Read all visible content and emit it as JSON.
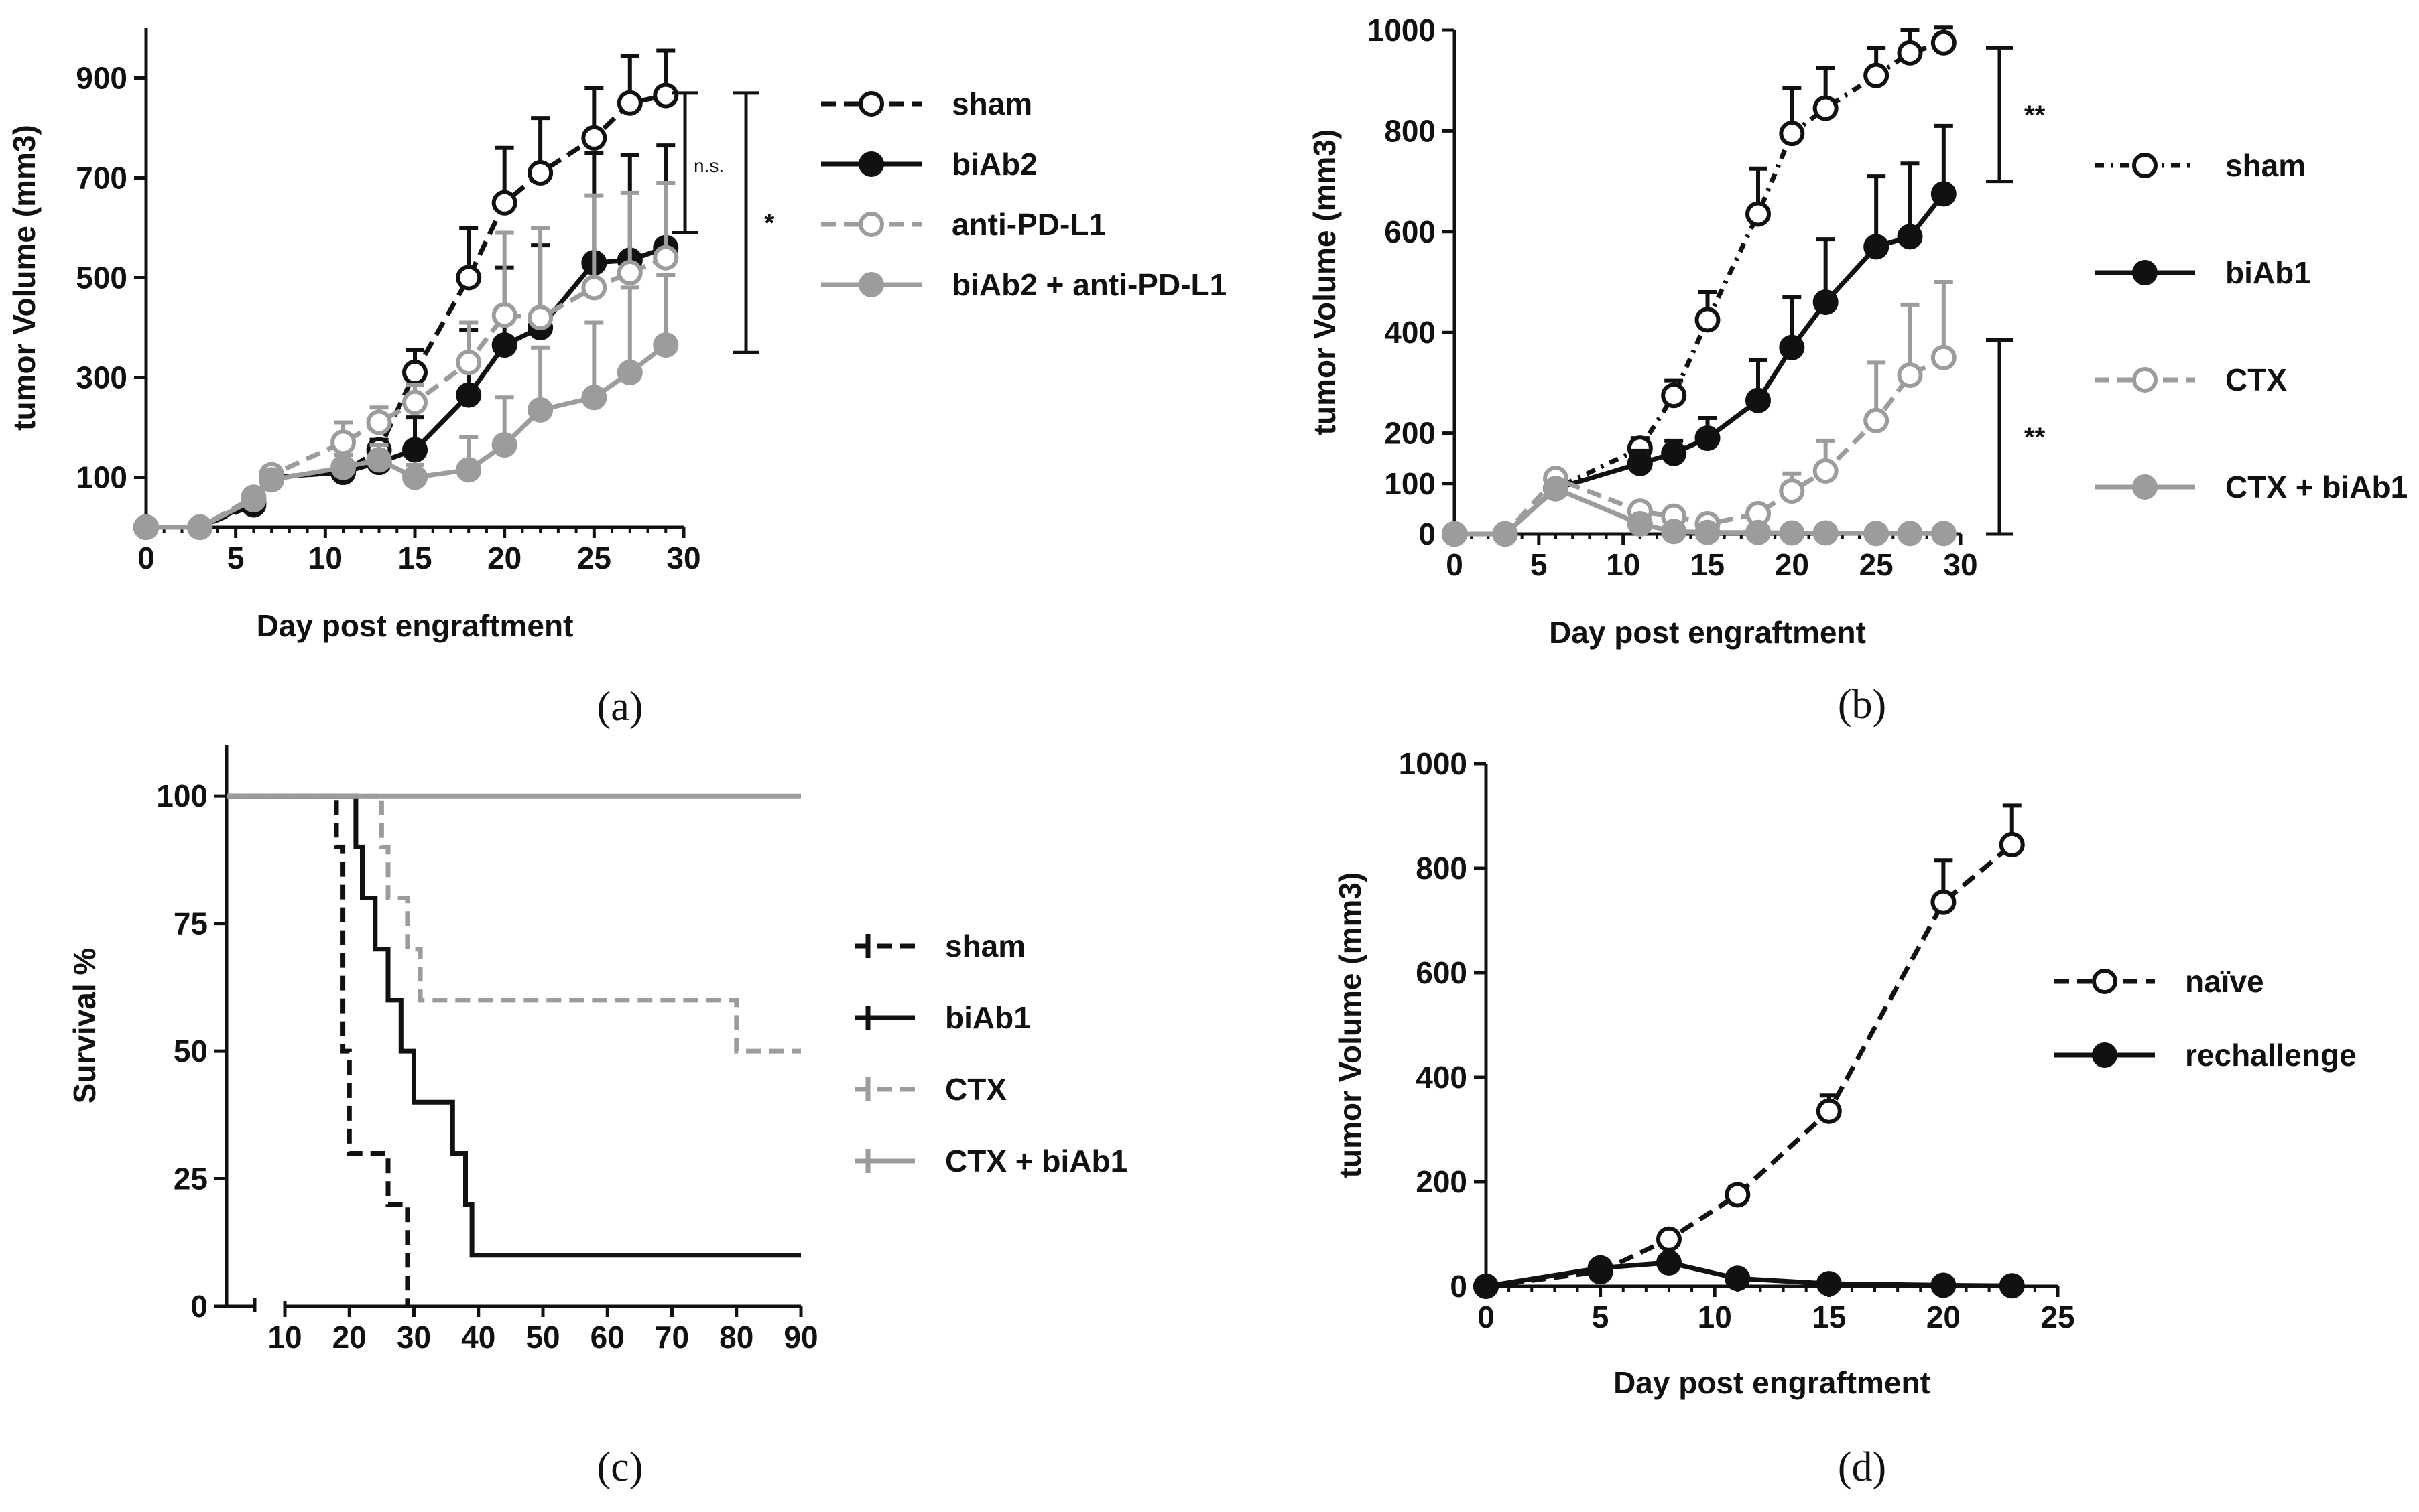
{
  "colors": {
    "black": "#111111",
    "gray": "#9c9c9c"
  },
  "chart_data": [
    {
      "type": "line",
      "panel_label": "(a)",
      "xlabel": "Day post engraftment",
      "ylabel": "tumor Volume (mm3)",
      "xlim": [
        0,
        30
      ],
      "ylim": [
        0,
        1000
      ],
      "x_ticks": [
        "0",
        "5",
        "10",
        "15",
        "20",
        "25",
        "30"
      ],
      "y_ticks": [
        "100",
        "300",
        "500",
        "700",
        "900"
      ],
      "series": [
        {
          "name": "sham",
          "style": "black-dashed-open",
          "x": [
            0,
            3,
            6,
            7,
            11,
            13,
            15,
            18,
            20,
            22,
            25,
            27,
            29
          ],
          "values": [
            0,
            0,
            45,
            100,
            110,
            155,
            310,
            500,
            650,
            710,
            780,
            850,
            865
          ],
          "errors": [
            0,
            0,
            10,
            15,
            15,
            20,
            45,
            100,
            110,
            110,
            100,
            95,
            90
          ]
        },
        {
          "name": "biAb2",
          "style": "black-solid-filled",
          "x": [
            0,
            3,
            6,
            7,
            11,
            13,
            15,
            18,
            20,
            22,
            25,
            27,
            29
          ],
          "values": [
            0,
            0,
            50,
            100,
            110,
            130,
            155,
            265,
            365,
            400,
            530,
            535,
            560
          ],
          "errors": [
            0,
            0,
            10,
            10,
            15,
            20,
            65,
            130,
            155,
            165,
            220,
            210,
            205
          ]
        },
        {
          "name": "anti-PD-L1",
          "style": "gray-dashed-open",
          "x": [
            0,
            3,
            6,
            7,
            11,
            13,
            15,
            18,
            20,
            22,
            25,
            27,
            29
          ],
          "values": [
            0,
            0,
            60,
            105,
            170,
            210,
            250,
            330,
            425,
            420,
            480,
            510,
            540
          ],
          "errors": [
            0,
            0,
            15,
            15,
            40,
            30,
            35,
            80,
            165,
            180,
            185,
            160,
            150
          ]
        },
        {
          "name": "biAb2 + anti-PD-L1",
          "style": "gray-solid-filled",
          "x": [
            0,
            3,
            6,
            7,
            11,
            13,
            15,
            18,
            20,
            22,
            25,
            27,
            29
          ],
          "values": [
            0,
            0,
            55,
            95,
            120,
            135,
            100,
            115,
            165,
            235,
            260,
            310,
            365
          ],
          "errors": [
            0,
            0,
            10,
            10,
            25,
            30,
            25,
            65,
            95,
            125,
            150,
            170,
            140
          ]
        }
      ],
      "annotations": [
        {
          "text": "n.s.",
          "y_top": 870,
          "y_bottom": 590
        },
        {
          "text": "*",
          "y_top": 870,
          "y_bottom": 350
        }
      ]
    },
    {
      "type": "line",
      "panel_label": "(b)",
      "xlabel": "Day post engraftment",
      "ylabel": "tumor Volume (mm3)",
      "xlim": [
        0,
        30
      ],
      "ylim": [
        0,
        1000
      ],
      "x_ticks": [
        "0",
        "5",
        "10",
        "15",
        "20",
        "25",
        "30"
      ],
      "y_ticks": [
        "0",
        "100",
        "200",
        "400",
        "600",
        "800",
        "1000"
      ],
      "series": [
        {
          "name": "sham",
          "style": "black-dashdot-open",
          "x": [
            0,
            3,
            6,
            11,
            13,
            15,
            18,
            20,
            22,
            25,
            27,
            29
          ],
          "values": [
            0,
            0,
            90,
            170,
            275,
            425,
            635,
            795,
            845,
            910,
            955,
            975
          ],
          "errors": [
            0,
            0,
            10,
            20,
            30,
            55,
            90,
            90,
            80,
            55,
            45,
            30
          ]
        },
        {
          "name": "biAb1",
          "style": "black-solid-filled",
          "x": [
            0,
            3,
            6,
            11,
            13,
            15,
            18,
            20,
            22,
            25,
            27,
            29
          ],
          "values": [
            0,
            0,
            90,
            140,
            160,
            190,
            265,
            370,
            460,
            570,
            590,
            675
          ],
          "errors": [
            0,
            0,
            10,
            25,
            25,
            40,
            80,
            100,
            125,
            140,
            145,
            135
          ]
        },
        {
          "name": "CTX",
          "style": "gray-dashed-open",
          "x": [
            0,
            3,
            6,
            11,
            13,
            15,
            18,
            20,
            22,
            25,
            27,
            29
          ],
          "values": [
            0,
            0,
            110,
            45,
            35,
            20,
            40,
            85,
            125,
            225,
            315,
            350
          ],
          "errors": [
            0,
            0,
            10,
            10,
            10,
            10,
            15,
            35,
            60,
            115,
            140,
            150
          ]
        },
        {
          "name": "CTX + biAb1",
          "style": "gray-solid-filled",
          "x": [
            0,
            3,
            6,
            11,
            13,
            15,
            18,
            20,
            22,
            25,
            27,
            29
          ],
          "values": [
            0,
            0,
            90,
            20,
            5,
            3,
            3,
            2,
            2,
            1,
            1,
            1
          ],
          "errors": [
            0,
            0,
            8,
            5,
            3,
            2,
            2,
            2,
            2,
            1,
            1,
            1
          ]
        }
      ],
      "annotations": [
        {
          "text": "**",
          "y_top": 965,
          "y_bottom": 700
        },
        {
          "text": "**",
          "y_top": 385,
          "y_bottom": 0
        }
      ]
    },
    {
      "type": "line",
      "panel_label": "(c)",
      "xlabel": "",
      "ylabel": "Survival %",
      "xlim": [
        0,
        90
      ],
      "ylim": [
        0,
        110
      ],
      "x_ticks": [
        "10",
        "20",
        "30",
        "40",
        "50",
        "60",
        "70",
        "80",
        "90"
      ],
      "y_ticks": [
        "0",
        "25",
        "50",
        "75",
        "100"
      ],
      "series": [
        {
          "name": "sham",
          "style": "black-dashed-step",
          "x": [
            0,
            18,
            18,
            19,
            19,
            20,
            20,
            22,
            22,
            26,
            26,
            29,
            29
          ],
          "values": [
            100,
            100,
            90,
            90,
            50,
            50,
            30,
            30,
            30,
            30,
            20,
            20,
            0
          ]
        },
        {
          "name": "biAb1",
          "style": "black-solid-step",
          "x": [
            0,
            21,
            21,
            22,
            22,
            24,
            24,
            26,
            26,
            28,
            28,
            30,
            30,
            36,
            36,
            38,
            38,
            39,
            39,
            90
          ],
          "values": [
            100,
            100,
            90,
            90,
            80,
            80,
            70,
            70,
            60,
            60,
            50,
            50,
            40,
            40,
            30,
            30,
            20,
            20,
            10,
            10
          ]
        },
        {
          "name": "CTX",
          "style": "gray-dashed-step",
          "x": [
            0,
            25,
            25,
            26,
            26,
            29,
            29,
            31,
            31,
            32,
            32,
            80,
            80,
            90
          ],
          "values": [
            100,
            100,
            90,
            90,
            80,
            80,
            70,
            70,
            60,
            60,
            60,
            60,
            50,
            50
          ]
        },
        {
          "name": "CTX + biAb1",
          "style": "gray-solid-step",
          "x": [
            0,
            90
          ],
          "values": [
            100,
            100
          ]
        }
      ]
    },
    {
      "type": "line",
      "panel_label": "(d)",
      "xlabel": "Day post engraftment",
      "ylabel": "tumor Volume (mm3)",
      "xlim": [
        0,
        25
      ],
      "ylim": [
        0,
        1000
      ],
      "x_ticks": [
        "0",
        "5",
        "10",
        "15",
        "20",
        "25"
      ],
      "y_ticks": [
        "0",
        "200",
        "400",
        "600",
        "800",
        "1000"
      ],
      "series": [
        {
          "name": "naïve",
          "style": "black-dashed-open",
          "x": [
            0,
            5,
            8,
            11,
            15,
            20,
            23
          ],
          "values": [
            0,
            28,
            90,
            175,
            335,
            735,
            845
          ],
          "errors": [
            0,
            8,
            12,
            15,
            30,
            80,
            75
          ]
        },
        {
          "name": "rechallenge",
          "style": "black-solid-filled",
          "x": [
            0,
            5,
            8,
            11,
            15,
            20,
            23
          ],
          "values": [
            0,
            35,
            45,
            15,
            5,
            2,
            1
          ],
          "errors": [
            0,
            5,
            8,
            5,
            3,
            2,
            1
          ]
        }
      ]
    }
  ]
}
